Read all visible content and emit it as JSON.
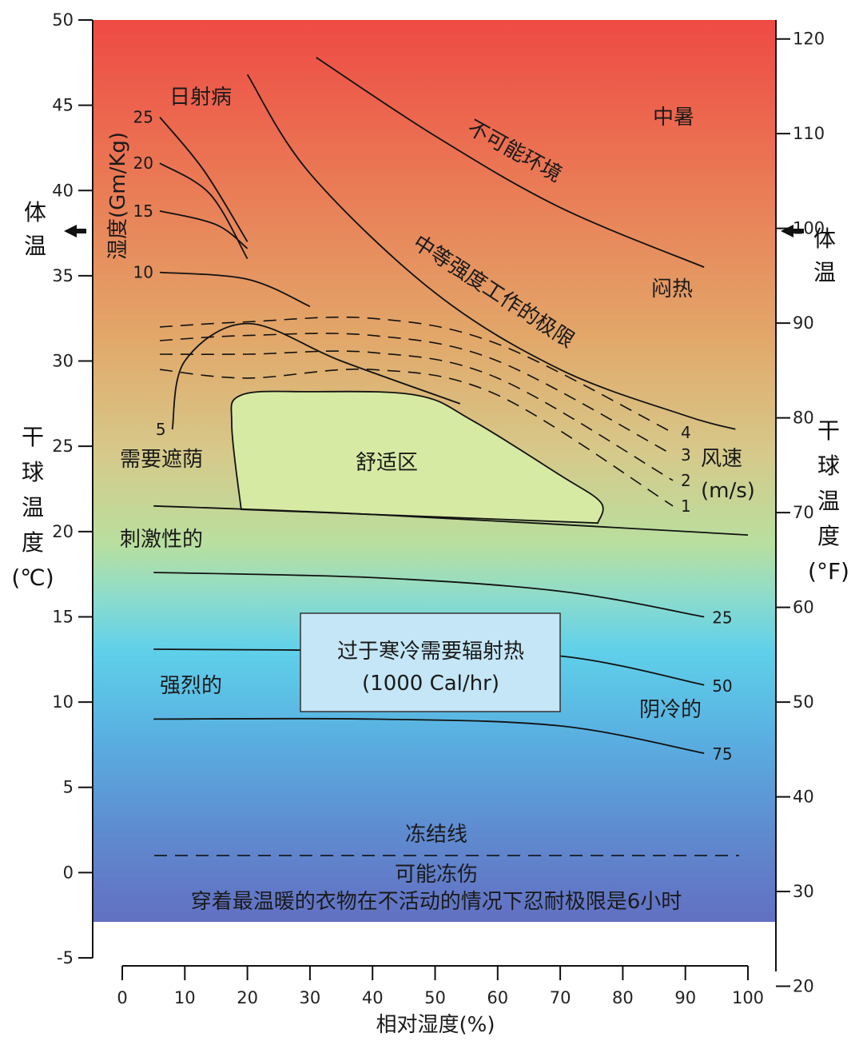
{
  "chart_data": {
    "type": "line",
    "title": "",
    "xlabel": "相对湿度(%)",
    "ylabel_left": [
      "干",
      "球",
      "温",
      "度",
      "(℃)"
    ],
    "ylabel_right": [
      "干",
      "球",
      "温",
      "度",
      "(°F)"
    ],
    "body_temp_left": [
      "体",
      "温"
    ],
    "body_temp_right": [
      "体",
      "温"
    ],
    "xlim": [
      0,
      100
    ],
    "ylim": [
      -5,
      50
    ],
    "x_ticks": [
      0,
      10,
      20,
      30,
      40,
      50,
      60,
      70,
      80,
      90,
      100
    ],
    "y_ticks_c": [
      -5,
      0,
      5,
      10,
      15,
      20,
      25,
      30,
      35,
      40,
      45,
      50
    ],
    "y_ticks_f": [
      20,
      30,
      40,
      50,
      60,
      70,
      80,
      90,
      100,
      110,
      120
    ],
    "humidity_axis_label": "湿度(Gm/Kg)",
    "boundaries": [
      {
        "name": "不可能环境",
        "points": [
          [
            31,
            47.8
          ],
          [
            50,
            43.2
          ],
          [
            70,
            39.0
          ],
          [
            93,
            35.5
          ]
        ]
      },
      {
        "name": "中等强度工作的极限",
        "points": [
          [
            20,
            46.8
          ],
          [
            30,
            41.0
          ],
          [
            50,
            34.0
          ],
          [
            70,
            29.5
          ],
          [
            90,
            26.8
          ],
          [
            98,
            26.0
          ]
        ]
      },
      {
        "name": "刺激性的",
        "points": [
          [
            5,
            21.5
          ],
          [
            40,
            21.0
          ],
          [
            100,
            19.8
          ]
        ]
      }
    ],
    "humidity_curves": [
      {
        "label": "25",
        "points": [
          [
            6,
            44.3
          ],
          [
            13,
            41.2
          ],
          [
            20,
            37.0
          ]
        ]
      },
      {
        "label": "20",
        "points": [
          [
            6,
            41.6
          ],
          [
            14,
            39.8
          ],
          [
            20,
            36.0
          ]
        ]
      },
      {
        "label": "15",
        "points": [
          [
            6,
            38.8
          ],
          [
            15,
            38.0
          ],
          [
            20,
            36.6
          ]
        ]
      },
      {
        "label": "10",
        "points": [
          [
            6,
            35.2
          ],
          [
            20,
            34.8
          ],
          [
            30,
            33.2
          ]
        ]
      },
      {
        "label": "5",
        "points": [
          [
            8,
            26.0
          ],
          [
            10,
            30.0
          ],
          [
            20,
            32.2
          ],
          [
            35,
            30.0
          ],
          [
            54,
            27.5
          ]
        ]
      }
    ],
    "wind_speed": {
      "label": "风速",
      "unit": "(m/s)",
      "series": [
        {
          "name": "4",
          "points": [
            [
              6,
              32.0
            ],
            [
              20,
              32.3
            ],
            [
              40,
              32.5
            ],
            [
              60,
              31.0
            ],
            [
              88,
              25.8
            ]
          ]
        },
        {
          "name": "3",
          "points": [
            [
              6,
              31.2
            ],
            [
              20,
              31.5
            ],
            [
              40,
              31.5
            ],
            [
              60,
              30.0
            ],
            [
              88,
              24.5
            ]
          ]
        },
        {
          "name": "2",
          "points": [
            [
              6,
              30.4
            ],
            [
              20,
              30.4
            ],
            [
              40,
              30.5
            ],
            [
              60,
              29.0
            ],
            [
              88,
              23.0
            ]
          ]
        },
        {
          "name": "1",
          "points": [
            [
              6,
              29.5
            ],
            [
              20,
              29.0
            ],
            [
              40,
              29.5
            ],
            [
              60,
              28.0
            ],
            [
              88,
              21.5
            ]
          ]
        }
      ]
    },
    "radiant_heat_curves": [
      {
        "label": "25",
        "points": [
          [
            5,
            17.6
          ],
          [
            40,
            17.3
          ],
          [
            70,
            16.5
          ],
          [
            93,
            15.0
          ]
        ]
      },
      {
        "label": "50",
        "points": [
          [
            5,
            13.1
          ],
          [
            40,
            13.0
          ],
          [
            70,
            12.7
          ],
          [
            93,
            11.0
          ]
        ]
      },
      {
        "label": "75",
        "points": [
          [
            5,
            9.0
          ],
          [
            40,
            9.0
          ],
          [
            70,
            8.6
          ],
          [
            93,
            7.0
          ]
        ]
      }
    ],
    "comfort_zone": {
      "label": "舒适区",
      "points": [
        [
          19,
          21.3
        ],
        [
          17.5,
          26.3
        ],
        [
          19,
          28.0
        ],
        [
          30,
          28.2
        ],
        [
          47,
          28.0
        ],
        [
          56,
          26.5
        ],
        [
          70,
          23.3
        ],
        [
          76.5,
          21.7
        ],
        [
          76,
          20.5
        ]
      ]
    },
    "freeze_line": {
      "label": "冻结线",
      "y": 1.0
    },
    "region_labels": {
      "heatstroke": "中暑",
      "sunstroke": "日射病",
      "impossible": "不可能环境",
      "moderate_work": "中等强度工作的极限",
      "muggy": "闷热",
      "need_shade": "需要遮荫",
      "comfort": "舒适区",
      "irritating": "刺激性的",
      "strong": "强烈的",
      "chilly": "阴冷的",
      "too_cold_line1": "过于寒冷需要辐射热",
      "too_cold_line2": "(1000 Cal/hr)",
      "frostbite": "可能冻伤",
      "bottom_note": "穿着最温暖的衣物在不活动的情况下忍耐极限是6小时"
    }
  }
}
